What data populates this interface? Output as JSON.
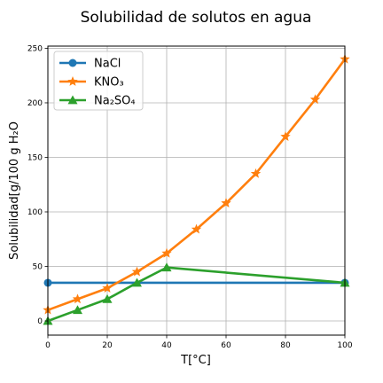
{
  "chart_data": {
    "type": "line",
    "title": "Solubilidad de solutos en agua",
    "xlabel": "T[°C]",
    "ylabel": "Solubilidad[g/100 g H₂O",
    "xlim": [
      0,
      100
    ],
    "ylim": [
      -13,
      252
    ],
    "xticks": [
      0,
      20,
      40,
      60,
      80,
      100
    ],
    "yticks": [
      0,
      50,
      100,
      150,
      200,
      250
    ],
    "grid": true,
    "legend_position": "top-left",
    "series": [
      {
        "name": "NaCl",
        "color": "#1f77b4",
        "marker": "circle",
        "x": [
          0,
          100
        ],
        "y": [
          35,
          35
        ]
      },
      {
        "name": "KNO₃",
        "color": "#ff7f0e",
        "marker": "star",
        "x": [
          0,
          10,
          20,
          30,
          40,
          50,
          60,
          70,
          80,
          90,
          100
        ],
        "y": [
          10,
          20,
          30,
          45,
          62,
          84,
          108,
          135,
          169,
          203,
          240
        ]
      },
      {
        "name": "Na₂SO₄",
        "color": "#2ca02c",
        "marker": "triangle",
        "x": [
          0,
          10,
          20,
          30,
          40,
          100
        ],
        "y": [
          0,
          10,
          20,
          35,
          49,
          35
        ]
      }
    ]
  }
}
